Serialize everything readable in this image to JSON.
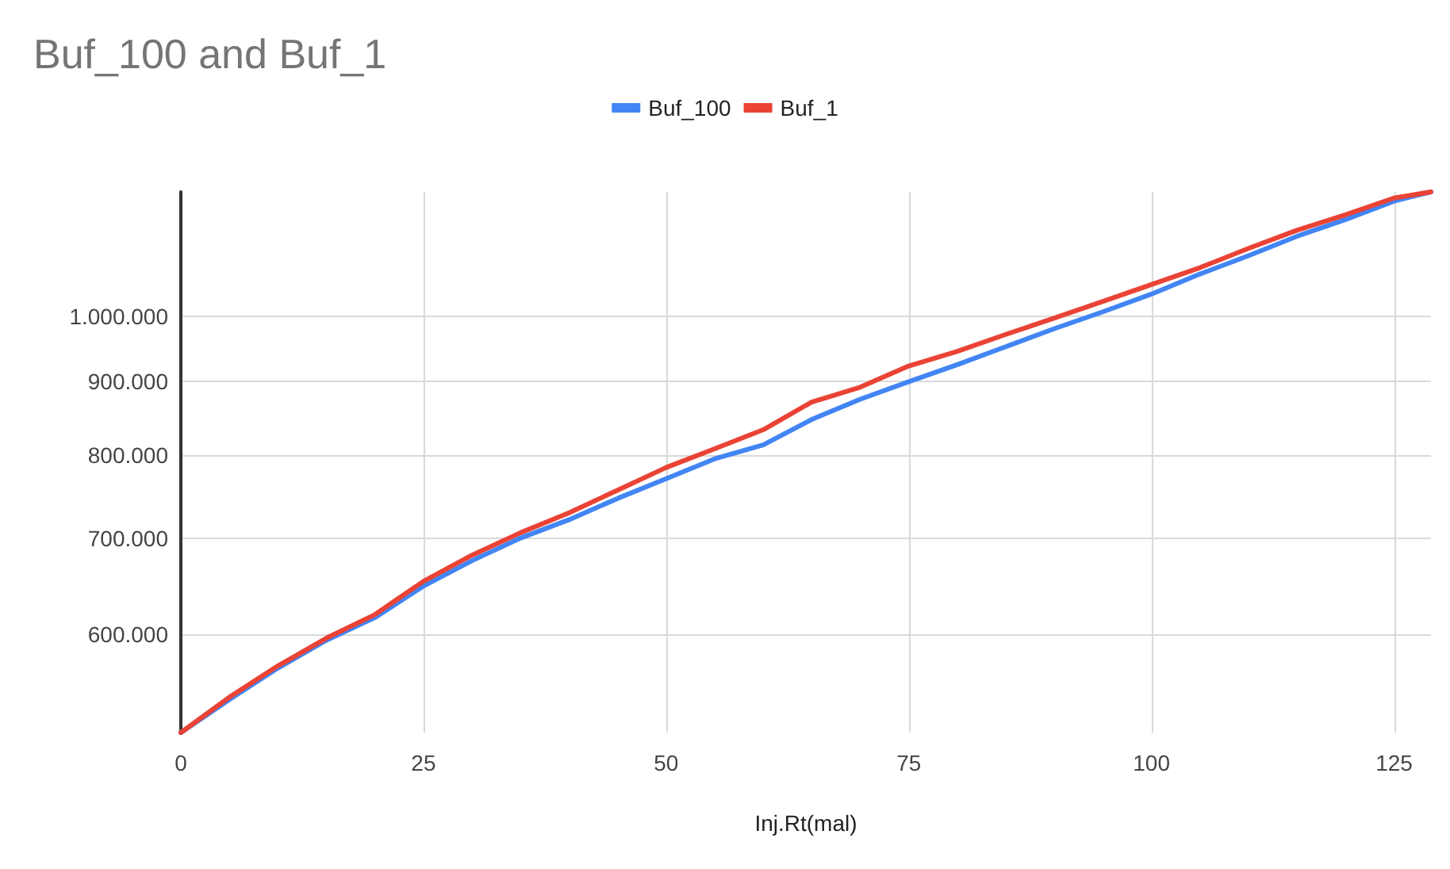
{
  "chart_data": {
    "type": "line",
    "title": "Buf_100 and Buf_1",
    "xlabel": "Inj.Rt(mal)",
    "x": [
      0,
      5,
      10,
      15,
      20,
      25,
      30,
      35,
      40,
      45,
      50,
      55,
      60,
      65,
      70,
      75,
      80,
      85,
      90,
      95,
      100,
      105,
      110,
      115,
      120,
      125,
      128.8
    ],
    "series": [
      {
        "name": "Buf_100",
        "color": "#4285f4",
        "values": [
          512000,
          540000,
          568000,
          594000,
          616000,
          648000,
          675000,
          700000,
          721000,
          746000,
          770000,
          795000,
          813000,
          847000,
          875000,
          900000,
          925000,
          952000,
          980000,
          1007000,
          1036000,
          1070000,
          1102000,
          1137000,
          1168000,
          1203000,
          1221000
        ]
      },
      {
        "name": "Buf_1",
        "color": "#ea4335",
        "values": [
          512000,
          542000,
          570000,
          596000,
          619000,
          653000,
          681000,
          706000,
          729000,
          756000,
          784000,
          808000,
          833000,
          871000,
          892000,
          923000,
          945000,
          971000,
          997000,
          1024000,
          1052000,
          1081000,
          1115000,
          1148000,
          1177000,
          1209000,
          1221000
        ]
      }
    ],
    "xlim": [
      0,
      128.8
    ],
    "xticks": [
      0,
      25,
      50,
      75,
      100,
      125
    ],
    "ylim": [
      512000,
      1221000
    ],
    "log": "y",
    "yticks": [
      {
        "value": 600000,
        "label": "600.000"
      },
      {
        "value": 700000,
        "label": "700.000"
      },
      {
        "value": 800000,
        "label": "800.000"
      },
      {
        "value": 900000,
        "label": "900.000"
      },
      {
        "value": 1000000,
        "label": "1.000.000"
      }
    ],
    "grid": true,
    "legend": "top",
    "marker": "none",
    "line_style": "solid"
  }
}
